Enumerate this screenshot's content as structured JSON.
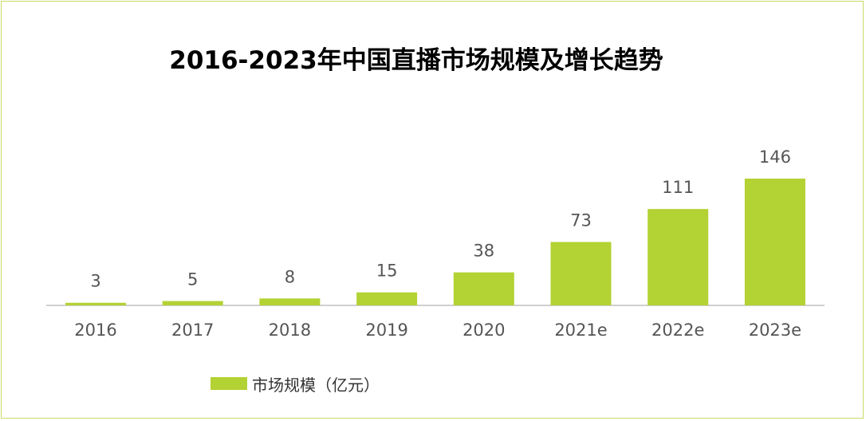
{
  "chart_data": {
    "type": "bar",
    "title": "2016-2023年中国直播市场规模及增长趋势",
    "categories": [
      "2016",
      "2017",
      "2018",
      "2019",
      "2020",
      "2021e",
      "2022e",
      "2023e"
    ],
    "series": [
      {
        "name": "市场规模（亿元）",
        "values": [
          3,
          5,
          8,
          15,
          38,
          73,
          111,
          146
        ]
      }
    ],
    "data_labels": [
      "3",
      "5",
      "8",
      "15",
      "38",
      "73",
      "111",
      "146"
    ],
    "ylim": [
      0,
      150
    ],
    "grid": false,
    "legend_position": "bottom-left",
    "colors": {
      "bar": "#b3d234",
      "axis": "#bfbfbf",
      "text": "#555555"
    }
  }
}
